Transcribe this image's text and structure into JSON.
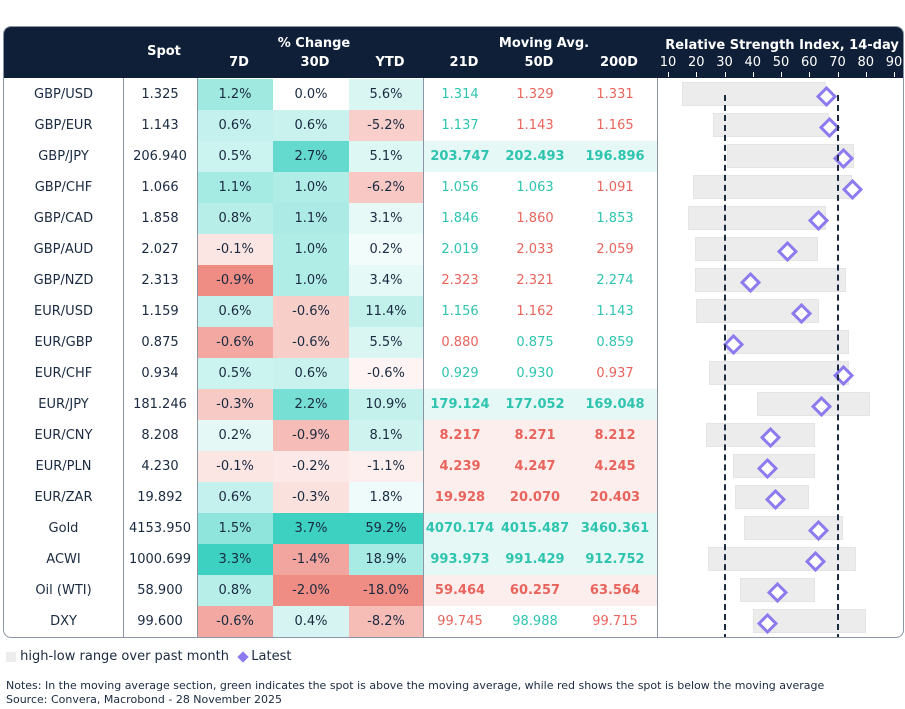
{
  "header": {
    "spot": "Spot",
    "pct_change": "% Change",
    "d7": "7D",
    "d30": "30D",
    "ytd": "YTD",
    "moving_avg": "Moving Avg.",
    "ma21": "21D",
    "ma50": "50D",
    "ma200": "200D",
    "rsi_title": "Relative Strength Index, 14-day"
  },
  "chart_data": {
    "type": "table",
    "rsi_axis": {
      "ticks": [
        "10",
        "20",
        "30",
        "40",
        "50",
        "60",
        "70",
        "80",
        "90"
      ],
      "range": [
        10,
        90
      ],
      "reference_lines": [
        30,
        70
      ]
    },
    "colors": {
      "positive": "#33cfbf",
      "negative": "#ee867c",
      "ma_above": "#2ec4b0",
      "ma_below": "#e8645c",
      "range": "#ececec",
      "latest": "#8c7bef",
      "header": "#0f1f38"
    },
    "rows": [
      {
        "name": "GBP/USD",
        "spot": "1.325",
        "d7": "1.2%",
        "d30": "0.0%",
        "ytd": "5.6%",
        "ma": [
          "1.314",
          "1.329",
          "1.331"
        ],
        "ma_above": [
          true,
          false,
          false
        ],
        "emph": false,
        "rsi_low": 15,
        "rsi_high": 66,
        "rsi": 66
      },
      {
        "name": "GBP/EUR",
        "spot": "1.143",
        "d7": "0.6%",
        "d30": "0.6%",
        "ytd": "-5.2%",
        "ma": [
          "1.137",
          "1.143",
          "1.165"
        ],
        "ma_above": [
          true,
          false,
          false
        ],
        "emph": false,
        "rsi_low": 26,
        "rsi_high": 67,
        "rsi": 67
      },
      {
        "name": "GBP/JPY",
        "spot": "206.940",
        "d7": "0.5%",
        "d30": "2.7%",
        "ytd": "5.1%",
        "ma": [
          "203.747",
          "202.493",
          "196.896"
        ],
        "ma_above": [
          true,
          true,
          true
        ],
        "emph": true,
        "rsi_low": 31,
        "rsi_high": 76,
        "rsi": 72
      },
      {
        "name": "GBP/CHF",
        "spot": "1.066",
        "d7": "1.1%",
        "d30": "1.0%",
        "ytd": "-6.2%",
        "ma": [
          "1.056",
          "1.063",
          "1.091"
        ],
        "ma_above": [
          true,
          true,
          false
        ],
        "emph": false,
        "rsi_low": 19,
        "rsi_high": 75,
        "rsi": 75
      },
      {
        "name": "GBP/CAD",
        "spot": "1.858",
        "d7": "0.8%",
        "d30": "1.1%",
        "ytd": "3.1%",
        "ma": [
          "1.846",
          "1.860",
          "1.853"
        ],
        "ma_above": [
          true,
          false,
          true
        ],
        "emph": false,
        "rsi_low": 17,
        "rsi_high": 66,
        "rsi": 63
      },
      {
        "name": "GBP/AUD",
        "spot": "2.027",
        "d7": "-0.1%",
        "d30": "1.0%",
        "ytd": "0.2%",
        "ma": [
          "2.019",
          "2.033",
          "2.059"
        ],
        "ma_above": [
          true,
          false,
          false
        ],
        "emph": false,
        "rsi_low": 19.5,
        "rsi_high": 63,
        "rsi": 52
      },
      {
        "name": "GBP/NZD",
        "spot": "2.313",
        "d7": "-0.9%",
        "d30": "1.0%",
        "ytd": "3.4%",
        "ma": [
          "2.323",
          "2.321",
          "2.274"
        ],
        "ma_above": [
          false,
          false,
          true
        ],
        "emph": false,
        "rsi_low": 19.5,
        "rsi_high": 73,
        "rsi": 39
      },
      {
        "name": "EUR/USD",
        "spot": "1.159",
        "d7": "0.6%",
        "d30": "-0.6%",
        "ytd": "11.4%",
        "ma": [
          "1.156",
          "1.162",
          "1.143"
        ],
        "ma_above": [
          true,
          false,
          true
        ],
        "emph": false,
        "rsi_low": 20,
        "rsi_high": 63.5,
        "rsi": 57
      },
      {
        "name": "EUR/GBP",
        "spot": "0.875",
        "d7": "-0.6%",
        "d30": "-0.6%",
        "ytd": "5.5%",
        "ma": [
          "0.880",
          "0.875",
          "0.859"
        ],
        "ma_above": [
          false,
          true,
          true
        ],
        "emph": false,
        "rsi_low": 31,
        "rsi_high": 74,
        "rsi": 33
      },
      {
        "name": "EUR/CHF",
        "spot": "0.934",
        "d7": "0.5%",
        "d30": "0.6%",
        "ytd": "-0.6%",
        "ma": [
          "0.929",
          "0.930",
          "0.937"
        ],
        "ma_above": [
          true,
          true,
          false
        ],
        "emph": false,
        "rsi_low": 24.5,
        "rsi_high": 74,
        "rsi": 72
      },
      {
        "name": "EUR/JPY",
        "spot": "181.246",
        "d7": "-0.3%",
        "d30": "2.2%",
        "ytd": "10.9%",
        "ma": [
          "179.124",
          "177.052",
          "169.048"
        ],
        "ma_above": [
          true,
          true,
          true
        ],
        "emph": true,
        "rsi_low": 41.5,
        "rsi_high": 81.5,
        "rsi": 64
      },
      {
        "name": "EUR/CNY",
        "spot": "8.208",
        "d7": "0.2%",
        "d30": "-0.9%",
        "ytd": "8.1%",
        "ma": [
          "8.217",
          "8.271",
          "8.212"
        ],
        "ma_above": [
          false,
          false,
          false
        ],
        "emph": true,
        "rsi_low": 23.5,
        "rsi_high": 62,
        "rsi": 46
      },
      {
        "name": "EUR/PLN",
        "spot": "4.230",
        "d7": "-0.1%",
        "d30": "-0.2%",
        "ytd": "-1.1%",
        "ma": [
          "4.239",
          "4.247",
          "4.245"
        ],
        "ma_above": [
          false,
          false,
          false
        ],
        "emph": true,
        "rsi_low": 33,
        "rsi_high": 62,
        "rsi": 45
      },
      {
        "name": "EUR/ZAR",
        "spot": "19.892",
        "d7": "0.6%",
        "d30": "-0.3%",
        "ytd": "1.8%",
        "ma": [
          "19.928",
          "20.070",
          "20.403"
        ],
        "ma_above": [
          false,
          false,
          false
        ],
        "emph": true,
        "rsi_low": 33.7,
        "rsi_high": 60,
        "rsi": 48
      },
      {
        "name": "Gold",
        "spot": "4153.950",
        "d7": "1.5%",
        "d30": "3.7%",
        "ytd": "59.2%",
        "ma": [
          "4070.174",
          "4015.487",
          "3460.361"
        ],
        "ma_above": [
          true,
          true,
          true
        ],
        "emph": true,
        "rsi_low": 37,
        "rsi_high": 72,
        "rsi": 63
      },
      {
        "name": "ACWI",
        "spot": "1000.699",
        "d7": "3.3%",
        "d30": "-1.4%",
        "ytd": "18.9%",
        "ma": [
          "993.973",
          "991.429",
          "912.752"
        ],
        "ma_above": [
          true,
          true,
          true
        ],
        "emph": true,
        "rsi_low": 24,
        "rsi_high": 76.5,
        "rsi": 62
      },
      {
        "name": "Oil (WTI)",
        "spot": "58.900",
        "d7": "0.8%",
        "d30": "-2.0%",
        "ytd": "-18.0%",
        "ma": [
          "59.464",
          "60.257",
          "63.564"
        ],
        "ma_above": [
          false,
          false,
          false
        ],
        "emph": true,
        "rsi_low": 35.5,
        "rsi_high": 62,
        "rsi": 48.6
      },
      {
        "name": "DXY",
        "spot": "99.600",
        "d7": "-0.6%",
        "d30": "0.4%",
        "ytd": "-8.2%",
        "ma": [
          "99.745",
          "98.988",
          "99.715"
        ],
        "ma_above": [
          false,
          true,
          false
        ],
        "emph": false,
        "rsi_low": 40,
        "rsi_high": 80,
        "rsi": 45
      }
    ]
  },
  "legend": {
    "range_label": "high-low range over past month",
    "latest_label": "Latest"
  },
  "notes": {
    "note": "Notes: In the moving average section, green indicates the spot is above the moving average, while red shows the spot is below the moving average",
    "source": "Source: Convera, Macrobond - 28 November 2025"
  }
}
